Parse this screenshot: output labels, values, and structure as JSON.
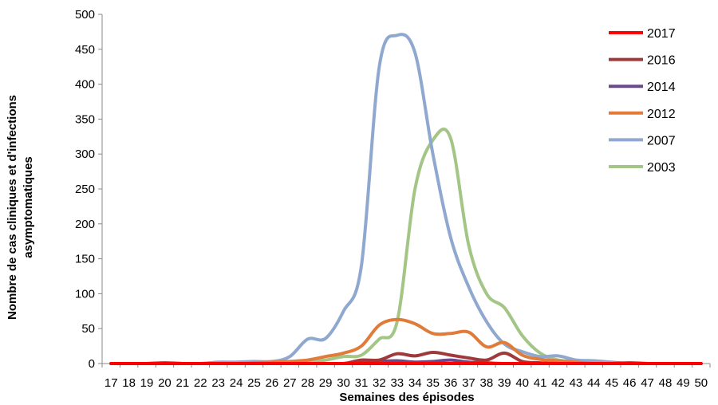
{
  "chart_data": {
    "type": "line",
    "xlabel": "Semaines des épisodes",
    "ylabel_lines": [
      "Nombre de cas cliniques et d'infections",
      "asymptomatiques"
    ],
    "x": [
      17,
      18,
      19,
      20,
      21,
      22,
      23,
      24,
      25,
      26,
      27,
      28,
      29,
      30,
      31,
      32,
      33,
      34,
      35,
      36,
      37,
      38,
      39,
      40,
      41,
      42,
      43,
      44,
      45,
      46,
      47,
      48,
      49,
      50
    ],
    "ylim": [
      0,
      500
    ],
    "yticks": [
      0,
      50,
      100,
      150,
      200,
      250,
      300,
      350,
      400,
      450,
      500
    ],
    "grid": false,
    "legend_position": "top-right",
    "series": [
      {
        "name": "2017",
        "color": "#ff0000",
        "values": [
          0,
          0,
          0,
          0,
          0,
          0,
          0,
          0,
          0,
          0,
          0,
          0,
          0,
          0,
          0,
          0,
          0,
          0,
          0,
          0,
          0,
          0,
          0,
          0,
          0,
          0,
          0,
          0,
          0,
          0,
          0,
          0,
          0,
          0
        ]
      },
      {
        "name": "2016",
        "color": "#a0393a",
        "values": [
          0,
          0,
          0,
          1,
          0,
          0,
          0,
          0,
          0,
          0,
          0,
          0,
          0,
          0,
          5,
          5,
          14,
          11,
          16,
          12,
          8,
          5,
          15,
          3,
          1,
          0,
          0,
          0,
          0,
          1,
          0,
          0,
          0,
          0
        ]
      },
      {
        "name": "2014",
        "color": "#6a4a8c",
        "values": [
          0,
          0,
          0,
          0,
          0,
          0,
          0,
          0,
          0,
          0,
          0,
          0,
          0,
          0,
          2,
          3,
          4,
          2,
          3,
          5,
          2,
          1,
          0,
          0,
          0,
          0,
          0,
          0,
          0,
          0,
          0,
          0,
          0,
          0
        ]
      },
      {
        "name": "2012",
        "color": "#e07b39",
        "values": [
          0,
          0,
          0,
          0,
          0,
          0,
          0,
          0,
          1,
          2,
          3,
          5,
          10,
          15,
          25,
          55,
          63,
          57,
          43,
          43,
          45,
          24,
          30,
          12,
          6,
          4,
          2,
          0,
          0,
          0,
          0,
          0,
          0,
          0
        ]
      },
      {
        "name": "2007",
        "color": "#8fa8cf",
        "values": [
          0,
          0,
          0,
          0,
          0,
          0,
          2,
          2,
          3,
          3,
          10,
          35,
          36,
          75,
          140,
          425,
          470,
          445,
          300,
          180,
          110,
          60,
          28,
          17,
          10,
          11,
          5,
          4,
          2,
          0,
          0,
          0,
          0,
          0
        ]
      },
      {
        "name": "2003",
        "color": "#a3c585",
        "values": [
          0,
          0,
          0,
          0,
          0,
          0,
          0,
          0,
          0,
          1,
          1,
          2,
          5,
          10,
          12,
          35,
          60,
          250,
          320,
          322,
          170,
          100,
          80,
          40,
          15,
          5,
          3,
          2,
          1,
          0,
          0,
          0,
          0,
          0
        ]
      }
    ]
  }
}
